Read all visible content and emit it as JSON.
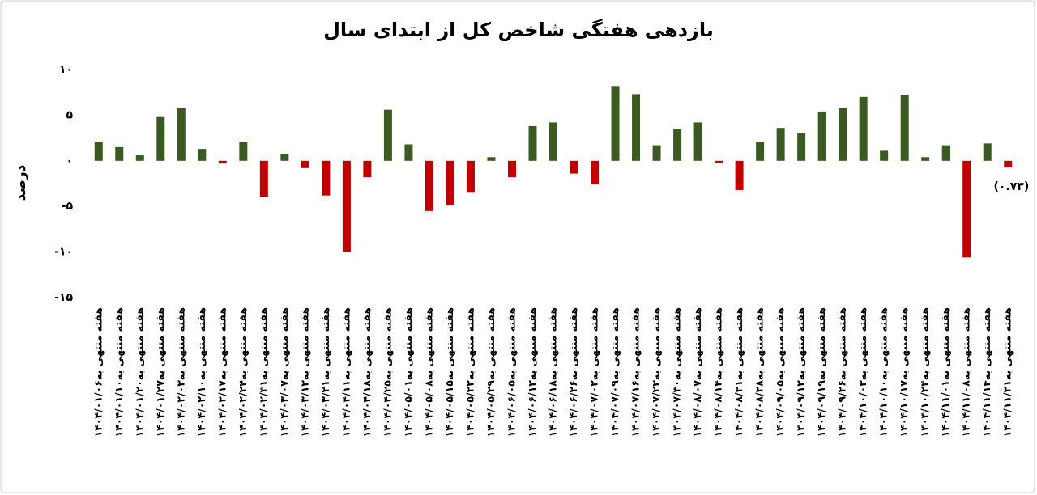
{
  "chart_data": {
    "type": "bar",
    "title": "بازدهی هفتگی شاخص کل از ابتدای سال",
    "y_label": "درصد",
    "categories": [
      "هفته منتهی به۱۴۰۴/۰۱/۰۶",
      "هفته منتهی به۱۴۰۴/۰۱/۱۰",
      "هفته منتهی به۱۴۰۴/۰۱/۲۰",
      "هفته منتهی به۱۴۰۴/۰۱/۲۷",
      "هفته منتهی به۱۴۰۴/۰۲/۰۳",
      "هفته منتهی به۱۴۰۴/۰۲/۱۰",
      "هفته منتهی به۱۴۰۴/۰۲/۱۷",
      "هفته منتهی به۱۴۰۴/۰۲/۲۴",
      "هفته منتهی به۱۴۰۴/۰۲/۳۱",
      "هفته منتهی به۱۴۰۴/۰۳/۰۷",
      "هفته منتهی به۱۴۰۴/۰۳/۱۳",
      "هفته منتهی به۱۴۰۴/۰۳/۲۱",
      "هفته منتهی به۱۴۰۴/۰۴/۱۱",
      "هفته منتهی به۱۴۰۴/۰۴/۱۸",
      "هفته منتهی به۱۴۰۴/۰۴/۲۵",
      "هفته منتهی به۱۴۰۴/۰۵/۰۱",
      "هفته منتهی به۱۴۰۴/۰۵/۰۸",
      "هفته منتهی به۱۴۰۴/۰۵/۱۵",
      "هفته منتهی به۱۴۰۴/۰۵/۲۲",
      "هفته منتهی به۱۴۰۴/۰۵/۲۹",
      "هفته منتهی به۱۴۰۴/۰۶/۰۵",
      "هفته منتهی به۱۴۰۴/۰۶/۱۲",
      "هفته منتهی به۱۴۰۴/۰۶/۱۸",
      "هفته منتهی به۱۴۰۴/۰۶/۲۶",
      "هفته منتهی به۱۴۰۴/۰۷/۰۲",
      "هفته منتهی به۱۴۰۴/۰۷/۰۹",
      "هفته منتهی به۱۴۰۴/۰۷/۱۶",
      "هفته منتهی به۱۴۰۴/۰۷/۲۳",
      "هفته منتهی به۱۴۰۴/۰۷/۳۰",
      "هفته منتهی به۱۴۰۴/۰۸/۰۷",
      "هفته منتهی به۱۴۰۴/۰۸/۱۴",
      "هفته منتهی به۱۴۰۴/۰۸/۲۱",
      "هفته منتهی به۱۴۰۴/۰۸/۲۸",
      "هفته منتهی به۱۴۰۴/۰۹/۰۵",
      "هفته منتهی به۱۴۰۴/۰۹/۱۲",
      "هفته منتهی به۱۴۰۴/۰۹/۱۹",
      "هفته منتهی به۱۴۰۴/۰۹/۲۶",
      "هفته منتهی به۱۴۰۴/۱۰/۰۳",
      "هفته منتهی به۱۴۰۴/۱۰/۱۰",
      "هفته منتهی به۱۴۰۴/۱۰/۱۷",
      "هفته منتهی به۱۴۰۴/۱۰/۲۴",
      "هفته منتهی به۱۴۰۴/۱۱/۰۱",
      "هفته منتهی به۱۴۰۴/۱۱/۰۸",
      "هفته منتهی به۱۴۰۴/۱۱/۱۴",
      "هفته منتهی به۱۴۰۴/۱۱/۲۱"
    ],
    "values": [
      2.1,
      1.5,
      0.6,
      4.8,
      5.8,
      1.3,
      -0.3,
      2.1,
      -4.0,
      0.7,
      -0.8,
      -3.8,
      -10.0,
      -1.8,
      5.6,
      1.8,
      -5.5,
      -4.9,
      -3.5,
      0.4,
      -1.8,
      3.8,
      4.2,
      -1.4,
      -2.6,
      8.2,
      7.3,
      1.7,
      3.5,
      4.2,
      -0.2,
      -3.2,
      2.1,
      3.6,
      3.0,
      5.4,
      5.8,
      7.0,
      1.1,
      7.2,
      0.4,
      1.7,
      -10.6,
      1.9,
      -0.73
    ],
    "value_labels": [
      null,
      null,
      null,
      null,
      null,
      null,
      null,
      null,
      null,
      null,
      null,
      null,
      null,
      null,
      null,
      null,
      null,
      null,
      null,
      null,
      null,
      null,
      null,
      null,
      null,
      null,
      null,
      null,
      null,
      null,
      null,
      null,
      null,
      null,
      null,
      null,
      null,
      null,
      null,
      null,
      null,
      null,
      null,
      null,
      "(۰.۷۳)"
    ],
    "colors": {
      "positive": "#3b5a22",
      "negative": "#c00000"
    },
    "ylim": [
      -15,
      10
    ],
    "yticks": [
      {
        "value": -15,
        "label": "-۱۵"
      },
      {
        "value": -10,
        "label": "-۱۰"
      },
      {
        "value": -5,
        "label": "-۵"
      },
      {
        "value": 0,
        "label": "۰"
      },
      {
        "value": 5,
        "label": "۵"
      },
      {
        "value": 10,
        "label": "۱۰"
      }
    ],
    "grid": false
  }
}
